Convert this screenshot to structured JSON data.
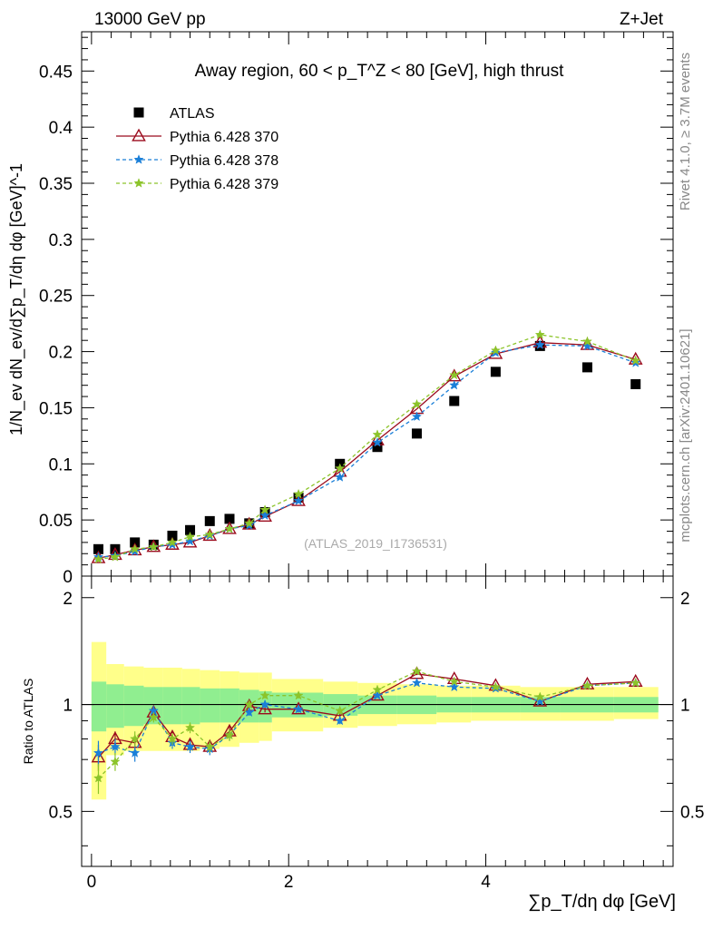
{
  "header": {
    "left": "13000 GeV pp",
    "right": "Z+Jet"
  },
  "side_labels": {
    "rivet": "Rivet 4.1.0, ≥ 3.7M events",
    "mcplots": "mcplots.cern.ch [arXiv:2401.10621]"
  },
  "chart_data": [
    {
      "type": "scatter",
      "panel": "main",
      "title": "Away region, 60 < p_T^Z < 80 [GeV], high thrust",
      "ylabel": "1/N_ev dN_ev/d∑p_T/dη dφ [GeV]^-1",
      "xlabel": "",
      "watermark": "(ATLAS_2019_I1736531)",
      "xlim": [
        -0.1,
        5.9
      ],
      "ylim": [
        0,
        0.485
      ],
      "yticks": [
        0,
        0.05,
        0.1,
        0.15,
        0.2,
        0.25,
        0.3,
        0.35,
        0.4,
        0.45
      ],
      "ytick_labels": [
        "0",
        "0.05",
        "0.1",
        "0.15",
        "0.2",
        "0.25",
        "0.3",
        "0.35",
        "0.4",
        "0.45"
      ],
      "x": [
        0.07,
        0.24,
        0.44,
        0.63,
        0.82,
        1.0,
        1.2,
        1.4,
        1.6,
        1.76,
        2.1,
        2.52,
        2.9,
        3.3,
        3.68,
        4.1,
        4.55,
        5.03,
        5.52
      ],
      "series": [
        {
          "name": "ATLAS",
          "color": "#000000",
          "marker": "square",
          "values": [
            0.024,
            0.024,
            0.03,
            0.028,
            0.036,
            0.041,
            0.049,
            0.051,
            0.047,
            0.057,
            0.07,
            0.1,
            0.115,
            0.127,
            0.156,
            0.182,
            0.205,
            0.186,
            0.171
          ]
        },
        {
          "name": "Pythia 6.428 370",
          "color": "#9b0b1d",
          "marker": "triangle",
          "dash": "",
          "values": [
            0.016,
            0.019,
            0.023,
            0.026,
            0.028,
            0.03,
            0.036,
            0.042,
            0.046,
            0.053,
            0.067,
            0.093,
            0.121,
            0.149,
            0.178,
            0.198,
            0.208,
            0.206,
            0.193
          ]
        },
        {
          "name": "Pythia 6.428 378",
          "color": "#1a7fd8",
          "marker": "star",
          "dash": "4,3",
          "values": [
            0.017,
            0.018,
            0.022,
            0.026,
            0.028,
            0.031,
            0.036,
            0.042,
            0.045,
            0.054,
            0.067,
            0.088,
            0.119,
            0.142,
            0.17,
            0.199,
            0.206,
            0.205,
            0.19
          ]
        },
        {
          "name": "Pythia 6.428 379",
          "color": "#8cc42a",
          "marker": "star",
          "dash": "4,3",
          "values": [
            0.015,
            0.017,
            0.024,
            0.026,
            0.03,
            0.035,
            0.037,
            0.042,
            0.047,
            0.059,
            0.073,
            0.096,
            0.126,
            0.153,
            0.179,
            0.201,
            0.215,
            0.209,
            0.192
          ]
        }
      ]
    },
    {
      "type": "scatter",
      "panel": "ratio",
      "ylabel": "Ratio to ATLAS",
      "xlabel": "∑p_T/dη dφ [GeV]",
      "xlim": [
        -0.1,
        5.9
      ],
      "ylim": [
        0.35,
        2.3
      ],
      "xticks": [
        0,
        2,
        4
      ],
      "xtick_labels": [
        "0",
        "2",
        "4"
      ],
      "yticks": [
        0.5,
        1,
        2
      ],
      "ytick_labels": [
        "0.5",
        "1",
        "2"
      ],
      "reference_line": 1,
      "band_edges": [
        0.0,
        0.15,
        0.33,
        0.53,
        0.72,
        0.92,
        1.1,
        1.3,
        1.5,
        1.7,
        1.83,
        2.35,
        2.7,
        3.1,
        3.5,
        3.85,
        4.35,
        4.75,
        5.3,
        5.75
      ],
      "stat_band": {
        "name": "ATLAS stat",
        "color": "#90ee90",
        "low": [
          0.84,
          0.86,
          0.87,
          0.88,
          0.88,
          0.88,
          0.89,
          0.89,
          0.89,
          0.89,
          0.92,
          0.93,
          0.94,
          0.94,
          0.95,
          0.95,
          0.95,
          0.95,
          0.95
        ],
        "high": [
          1.16,
          1.14,
          1.13,
          1.12,
          1.12,
          1.12,
          1.11,
          1.11,
          1.1,
          1.09,
          1.08,
          1.07,
          1.06,
          1.06,
          1.05,
          1.05,
          1.05,
          1.05,
          1.05
        ]
      },
      "syst_band": {
        "name": "ATLAS stat+syst",
        "color": "#ffff8a",
        "low": [
          0.54,
          0.72,
          0.74,
          0.74,
          0.74,
          0.74,
          0.75,
          0.76,
          0.78,
          0.79,
          0.84,
          0.86,
          0.87,
          0.88,
          0.89,
          0.9,
          0.9,
          0.9,
          0.91
        ],
        "high": [
          1.5,
          1.3,
          1.28,
          1.27,
          1.27,
          1.26,
          1.25,
          1.24,
          1.23,
          1.23,
          1.18,
          1.16,
          1.15,
          1.14,
          1.13,
          1.13,
          1.12,
          1.12,
          1.12
        ]
      },
      "x": [
        0.07,
        0.24,
        0.44,
        0.63,
        0.82,
        1.0,
        1.2,
        1.4,
        1.6,
        1.76,
        2.1,
        2.52,
        2.9,
        3.3,
        3.68,
        4.1,
        4.55,
        5.03,
        5.52
      ],
      "series": [
        {
          "name": "Pythia 6.428 370",
          "color": "#9b0b1d",
          "marker": "triangle",
          "dash": "",
          "values": [
            0.71,
            0.8,
            0.78,
            0.95,
            0.81,
            0.77,
            0.76,
            0.84,
            0.99,
            0.97,
            0.97,
            0.93,
            1.06,
            1.22,
            1.18,
            1.13,
            1.02,
            1.14,
            1.16
          ],
          "errors": [
            0.06,
            0.04,
            0.04,
            0.03,
            0.03,
            0.03,
            0.03,
            0.03,
            0.02,
            0.02,
            0.02,
            0.02,
            0.01,
            0.01,
            0.01,
            0.01,
            0.01,
            0.01,
            0.01
          ]
        },
        {
          "name": "Pythia 6.428 378",
          "color": "#1a7fd8",
          "marker": "star",
          "dash": "4,3",
          "values": [
            0.73,
            0.76,
            0.73,
            0.96,
            0.78,
            0.76,
            0.75,
            0.82,
            0.95,
            1.0,
            0.97,
            0.9,
            1.06,
            1.15,
            1.12,
            1.11,
            1.02,
            1.13,
            1.15
          ],
          "errors": [
            0.06,
            0.04,
            0.04,
            0.03,
            0.03,
            0.03,
            0.03,
            0.03,
            0.02,
            0.02,
            0.02,
            0.02,
            0.01,
            0.01,
            0.01,
            0.01,
            0.01,
            0.01,
            0.01
          ]
        },
        {
          "name": "Pythia 6.428 379",
          "color": "#8cc42a",
          "marker": "star",
          "dash": "4,3",
          "values": [
            0.62,
            0.69,
            0.8,
            0.92,
            0.8,
            0.86,
            0.76,
            0.82,
            1.0,
            1.06,
            1.06,
            0.96,
            1.1,
            1.24,
            1.16,
            1.12,
            1.05,
            1.13,
            1.15
          ],
          "errors": [
            0.06,
            0.04,
            0.04,
            0.03,
            0.03,
            0.03,
            0.03,
            0.03,
            0.02,
            0.02,
            0.02,
            0.02,
            0.01,
            0.01,
            0.01,
            0.01,
            0.01,
            0.01,
            0.01
          ]
        }
      ]
    }
  ]
}
